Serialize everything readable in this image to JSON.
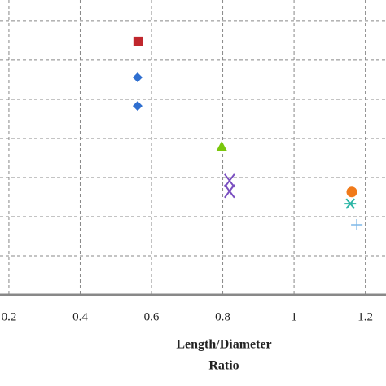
{
  "chart_data": {
    "type": "scatter",
    "x_label_lines": [
      "Length/Diameter",
      "Ratio"
    ],
    "xlim": [
      0.175,
      1.258
    ],
    "xticks": [
      0.2,
      0.4,
      0.6,
      0.8,
      1,
      1.2
    ],
    "ylim": [
      0,
      7.54
    ],
    "grid_y": [
      1,
      2,
      3,
      4,
      5,
      6,
      7
    ],
    "grid": true,
    "series": [
      {
        "color": "#c0272d",
        "marker": "square",
        "x": [
          0.563
        ],
        "y": [
          6.48
        ]
      },
      {
        "color": "#2f6fd0",
        "marker": "diamond",
        "x": [
          0.561,
          0.561
        ],
        "y": [
          5.56,
          4.83
        ]
      },
      {
        "color": "#7ac70c",
        "marker": "triangle",
        "x": [
          0.797
        ],
        "y": [
          3.79
        ]
      },
      {
        "color": "#7a4fc0",
        "marker": "x",
        "x": [
          0.819,
          0.819
        ],
        "y": [
          2.92,
          2.65
        ]
      },
      {
        "color": "#f07a1a",
        "marker": "circle",
        "x": [
          1.162
        ],
        "y": [
          2.63
        ]
      },
      {
        "color": "#2ab5a5",
        "marker": "asterisk",
        "x": [
          1.158
        ],
        "y": [
          2.33
        ]
      },
      {
        "color": "#7fb8e8",
        "marker": "plus",
        "x": [
          1.176
        ],
        "y": [
          1.79
        ]
      }
    ]
  }
}
